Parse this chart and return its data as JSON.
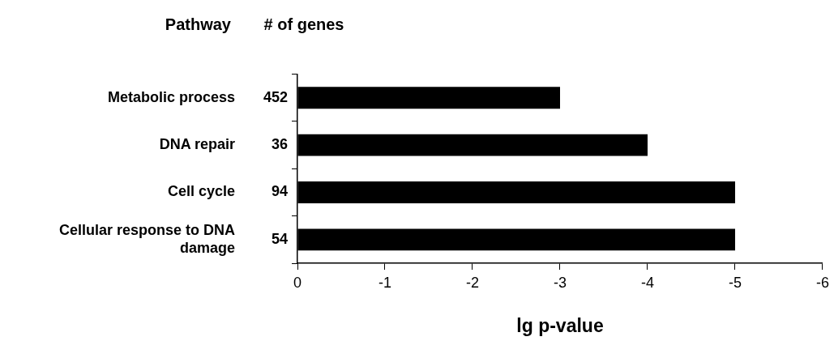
{
  "chart_data": {
    "type": "bar",
    "orientation": "horizontal",
    "xlabel": "lg p-value",
    "categories": [
      "Metabolic process",
      "DNA repair",
      "Cell cycle",
      "Cellular response to DNA damage"
    ],
    "values": [
      -3,
      -4,
      -5,
      -5
    ],
    "color": "#000000",
    "xlim": [
      0,
      -6
    ],
    "xticks": [
      0,
      -1,
      -2,
      -3,
      -4,
      -5,
      -6
    ],
    "grid": false,
    "legend": false,
    "annotations": [
      "Pathway",
      "# of genes",
      "452",
      "36",
      "94",
      "54"
    ]
  }
}
